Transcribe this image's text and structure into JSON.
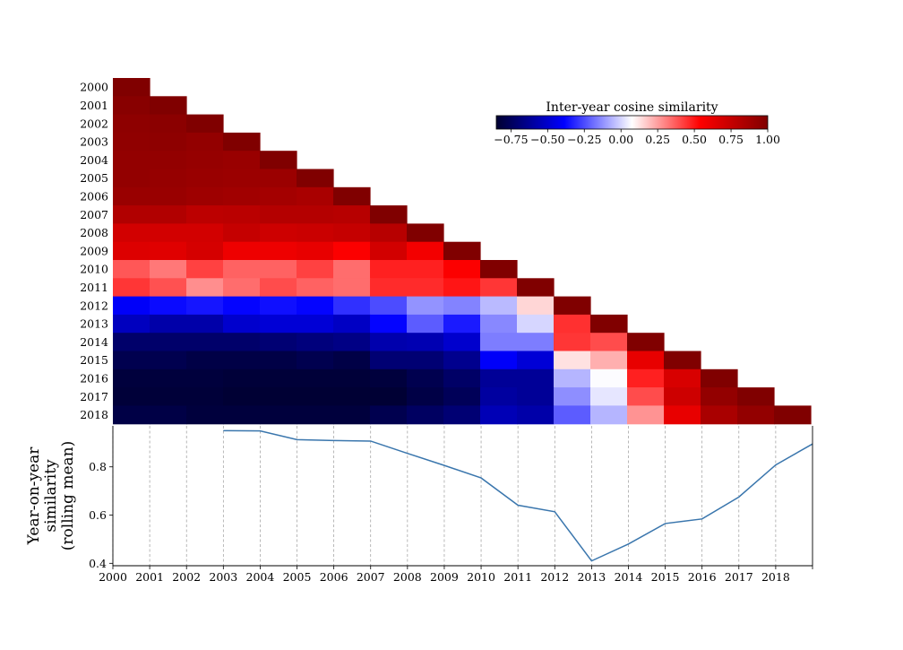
{
  "chart_data": [
    {
      "type": "heatmap",
      "subplot": "top",
      "shape": "lower-triangle",
      "years": [
        "2000",
        "2001",
        "2002",
        "2003",
        "2004",
        "2005",
        "2006",
        "2007",
        "2008",
        "2009",
        "2010",
        "2011",
        "2012",
        "2013",
        "2014",
        "2015",
        "2016",
        "2017",
        "2018"
      ],
      "colorbar": {
        "title": "Inter-year cosine similarity",
        "min": -0.85,
        "max": 1.0,
        "ticks": [
          -0.75,
          -0.5,
          -0.25,
          0.0,
          0.25,
          0.5,
          0.75,
          1.0
        ],
        "tick_labels": [
          "−0.75",
          "−0.50",
          "−0.25",
          "0.00",
          "0.25",
          "0.50",
          "0.75",
          "1.00"
        ],
        "colormap": "seismic",
        "placement": "top-right"
      },
      "rows": [
        [
          1.0
        ],
        [
          0.97,
          1.0
        ],
        [
          0.95,
          0.96,
          1.0
        ],
        [
          0.94,
          0.95,
          0.93,
          1.0
        ],
        [
          0.93,
          0.93,
          0.92,
          0.91,
          1.0
        ],
        [
          0.93,
          0.92,
          0.91,
          0.9,
          0.9,
          1.0
        ],
        [
          0.91,
          0.91,
          0.89,
          0.88,
          0.87,
          0.85,
          1.0
        ],
        [
          0.82,
          0.82,
          0.78,
          0.79,
          0.81,
          0.81,
          0.8,
          1.0
        ],
        [
          0.7,
          0.7,
          0.7,
          0.75,
          0.72,
          0.73,
          0.75,
          0.8,
          1.0
        ],
        [
          0.66,
          0.65,
          0.69,
          0.6,
          0.6,
          0.62,
          0.55,
          0.7,
          0.58,
          1.0
        ],
        [
          0.38,
          0.32,
          0.42,
          0.36,
          0.36,
          0.42,
          0.34,
          0.48,
          0.48,
          0.55,
          1.0
        ],
        [
          0.44,
          0.39,
          0.28,
          0.34,
          0.4,
          0.36,
          0.34,
          0.46,
          0.46,
          0.5,
          0.44,
          1.0
        ],
        [
          -0.4,
          -0.37,
          -0.35,
          -0.38,
          -0.36,
          -0.38,
          -0.3,
          -0.25,
          -0.12,
          -0.15,
          -0.05,
          0.15,
          1.0
        ],
        [
          -0.53,
          -0.58,
          -0.58,
          -0.5,
          -0.48,
          -0.48,
          -0.52,
          -0.38,
          -0.22,
          -0.34,
          -0.14,
          0.0,
          0.45,
          1.0
        ],
        [
          -0.72,
          -0.72,
          -0.72,
          -0.72,
          -0.7,
          -0.68,
          -0.66,
          -0.57,
          -0.56,
          -0.5,
          -0.16,
          -0.16,
          0.44,
          0.4,
          1.0
        ],
        [
          -0.78,
          -0.78,
          -0.8,
          -0.8,
          -0.8,
          -0.78,
          -0.8,
          -0.7,
          -0.7,
          -0.64,
          -0.4,
          -0.48,
          0.13,
          0.22,
          0.62,
          1.0
        ],
        [
          -0.82,
          -0.82,
          -0.82,
          -0.83,
          -0.83,
          -0.83,
          -0.83,
          -0.82,
          -0.78,
          -0.73,
          -0.62,
          -0.62,
          -0.06,
          0.07,
          0.48,
          0.68,
          1.0
        ],
        [
          -0.83,
          -0.83,
          -0.83,
          -0.84,
          -0.84,
          -0.84,
          -0.84,
          -0.84,
          -0.8,
          -0.76,
          -0.6,
          -0.62,
          -0.13,
          0.03,
          0.4,
          0.72,
          0.93,
          1.0
        ],
        [
          -0.8,
          -0.8,
          -0.82,
          -0.82,
          -0.82,
          -0.82,
          -0.82,
          -0.78,
          -0.74,
          -0.7,
          -0.55,
          -0.58,
          -0.22,
          -0.06,
          0.27,
          0.62,
          0.85,
          0.93,
          1.0
        ]
      ]
    },
    {
      "type": "line",
      "subplot": "bottom",
      "title": "",
      "xlabel": "",
      "ylabel": "Year-on-year similarity (rolling mean)",
      "xlim": [
        2000,
        2019
      ],
      "ylim": [
        0.39,
        0.97
      ],
      "x_ticks": [
        "2000",
        "2001",
        "2002",
        "2003",
        "2004",
        "2005",
        "2006",
        "2007",
        "2008",
        "2009",
        "2010",
        "2011",
        "2012",
        "2013",
        "2014",
        "2015",
        "2016",
        "2017",
        "2018"
      ],
      "y_ticks": [
        "0.4",
        "0.6",
        "0.8"
      ],
      "y_tick_values": [
        0.4,
        0.6,
        0.8
      ],
      "grid": "vertical dashed at each year",
      "series": [
        {
          "color": "#3a76ad",
          "x": [
            2003,
            2004,
            2005,
            2006,
            2007,
            2008,
            2009,
            2010,
            2011,
            2012,
            2013,
            2014,
            2015,
            2016,
            2017,
            2018,
            2019
          ],
          "y": [
            0.95,
            0.949,
            0.913,
            0.909,
            0.907,
            0.856,
            0.806,
            0.754,
            0.641,
            0.614,
            0.41,
            0.48,
            0.565,
            0.584,
            0.675,
            0.808,
            0.895
          ]
        }
      ]
    }
  ]
}
